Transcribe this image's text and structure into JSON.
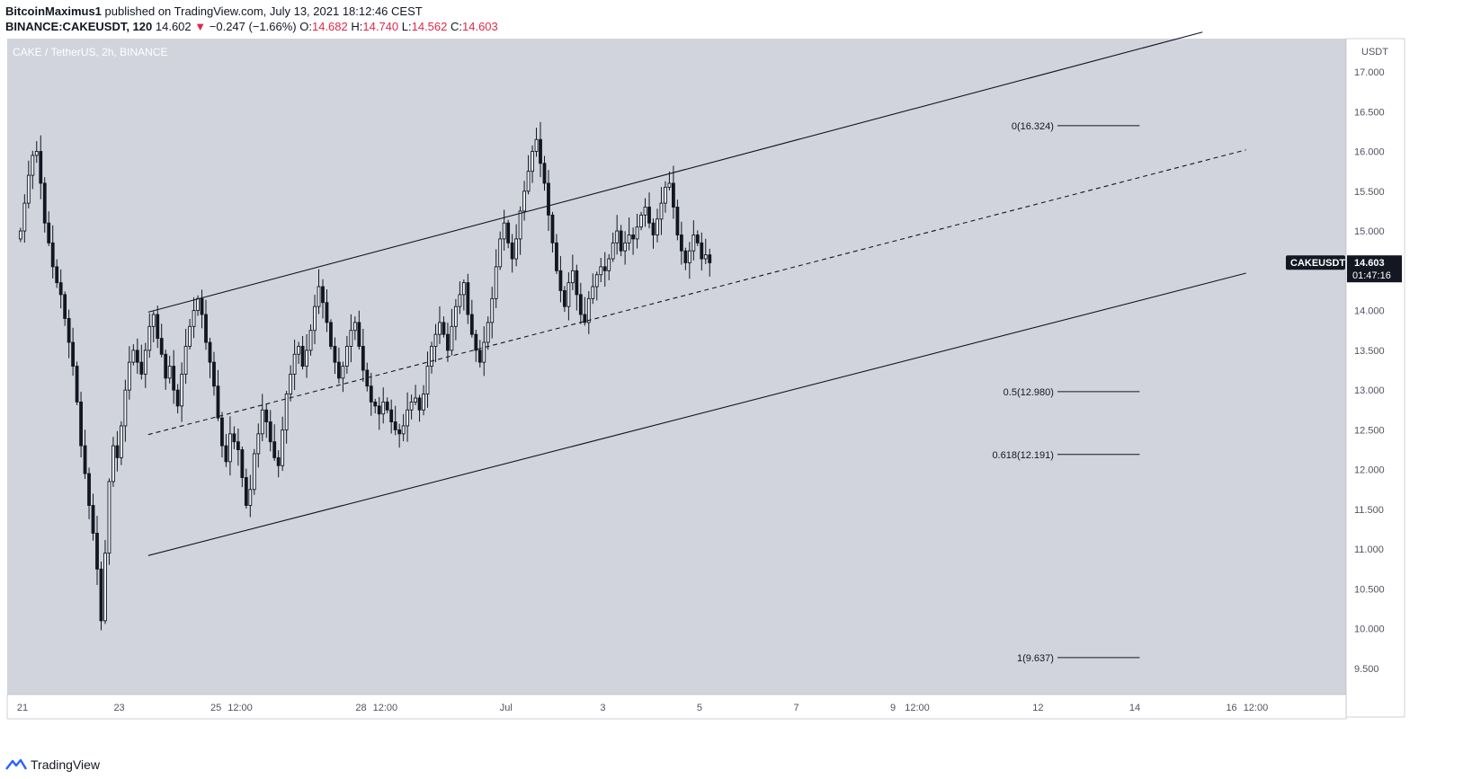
{
  "header": {
    "author": "BitcoinMaximus1",
    "published": "published on TradingView.com, July 13, 2021 18:12:46 CEST",
    "symbol_line": "BINANCE:CAKEUSDT, 120",
    "last": "14.602",
    "change": "−0.247 (−1.66%)",
    "o_label": "O:",
    "o": "14.682",
    "h_label": "H:",
    "h": "14.740",
    "l_label": "L:",
    "l": "14.562",
    "c_label": "C:",
    "c": "14.603"
  },
  "footer": {
    "brand": "TradingView"
  },
  "colors": {
    "plot_bg": "#d1d4dc",
    "candle": "#131722",
    "accent_red": "#e0294a",
    "tv_blue": "#2962ff"
  },
  "chart_data": {
    "type": "candlestick",
    "title": "CAKE / TetherUS, 2h, BINANCE",
    "y_axis_unit": "USDT",
    "ylim": [
      9.1,
      17.5
    ],
    "xlim": [
      20.9,
      17.2
    ],
    "y_ticks": [
      "17.000",
      "16.500",
      "16.000",
      "15.500",
      "15.000",
      "14.500",
      "14.000",
      "13.500",
      "13.000",
      "12.500",
      "12.000",
      "11.500",
      "11.000",
      "10.500",
      "10.000",
      "9.500"
    ],
    "x_ticks": [
      {
        "label": "21",
        "t": 21.0
      },
      {
        "label": "23",
        "t": 23.0
      },
      {
        "label": "25",
        "t": 25.0
      },
      {
        "label": "12:00",
        "t": 25.5
      },
      {
        "label": "28",
        "t": 28.0
      },
      {
        "label": "12:00",
        "t": 28.5
      },
      {
        "label": "Jul",
        "t": 31.0
      },
      {
        "label": "3",
        "t": 33.0
      },
      {
        "label": "5",
        "t": 35.0
      },
      {
        "label": "7",
        "t": 37.0
      },
      {
        "label": "9",
        "t": 39.0
      },
      {
        "label": "12:00",
        "t": 39.5
      },
      {
        "label": "12",
        "t": 42.0
      },
      {
        "label": "14",
        "t": 44.0
      },
      {
        "label": "16",
        "t": 46.0
      },
      {
        "label": "12:00",
        "t": 46.5
      }
    ],
    "price_label": {
      "symbol": "CAKEUSDT",
      "price": "14.603",
      "countdown": "01:47:16",
      "value": 14.603
    },
    "series": [
      {
        "interval_hours": 2,
        "start": 20.96,
        "closes": [
          15.0,
          15.35,
          15.7,
          15.95,
          16.0,
          15.6,
          15.1,
          14.85,
          14.55,
          14.35,
          14.2,
          13.9,
          13.6,
          13.3,
          12.85,
          12.3,
          11.95,
          11.55,
          11.2,
          10.75,
          10.1,
          10.95,
          11.85,
          12.3,
          12.15,
          12.55,
          13.0,
          13.35,
          13.5,
          13.35,
          13.2,
          13.5,
          13.8,
          13.95,
          13.65,
          13.45,
          13.15,
          13.3,
          13.0,
          12.8,
          13.2,
          13.55,
          13.8,
          14.0,
          14.15,
          13.95,
          13.6,
          13.35,
          13.05,
          12.65,
          12.3,
          12.1,
          12.45,
          12.35,
          12.25,
          11.9,
          11.55,
          11.75,
          12.2,
          12.45,
          12.75,
          12.6,
          12.35,
          12.15,
          12.05,
          12.5,
          12.95,
          13.2,
          13.45,
          13.55,
          13.3,
          13.5,
          13.75,
          14.05,
          14.3,
          14.1,
          13.85,
          13.55,
          13.35,
          13.15,
          13.3,
          13.55,
          13.75,
          13.85,
          13.55,
          13.25,
          13.05,
          12.85,
          12.8,
          12.7,
          12.85,
          12.75,
          12.6,
          12.5,
          12.45,
          12.55,
          12.75,
          12.85,
          12.9,
          12.75,
          12.95,
          13.3,
          13.55,
          13.7,
          13.85,
          13.7,
          13.5,
          13.8,
          14.05,
          14.2,
          14.35,
          13.95,
          13.7,
          13.5,
          13.35,
          13.6,
          13.85,
          14.15,
          14.55,
          14.9,
          15.1,
          14.85,
          14.65,
          14.9,
          15.25,
          15.5,
          15.75,
          16.0,
          16.15,
          15.85,
          15.6,
          15.2,
          14.85,
          14.5,
          14.25,
          14.05,
          14.35,
          14.5,
          14.2,
          13.95,
          13.85,
          14.15,
          14.3,
          14.45,
          14.55,
          14.5,
          14.65,
          14.85,
          15.0,
          14.75,
          14.85,
          14.95,
          14.9,
          15.05,
          15.2,
          15.3,
          15.1,
          14.95,
          15.15,
          15.35,
          15.55,
          15.6,
          15.3,
          14.95,
          14.75,
          14.6,
          14.75,
          14.95,
          14.85,
          14.65,
          14.7,
          14.6
        ]
      }
    ],
    "annotations": {
      "channel_upper": {
        "from": [
          23.6,
          13.98
        ],
        "to": [
          45.4,
          17.5
        ]
      },
      "channel_lower": {
        "from": [
          23.6,
          10.92
        ],
        "to": [
          46.3,
          14.47
        ]
      },
      "channel_mid": {
        "from": [
          23.6,
          12.44
        ],
        "to": [
          46.3,
          16.02
        ]
      },
      "fib_levels": [
        {
          "label": "0(16.324)",
          "value": 16.324
        },
        {
          "label": "0.5(12.980)",
          "value": 12.98
        },
        {
          "label": "0.618(12.191)",
          "value": 12.191
        },
        {
          "label": "1(9.637)",
          "value": 9.637
        }
      ],
      "fib_range": [
        42.4,
        44.1
      ]
    }
  }
}
